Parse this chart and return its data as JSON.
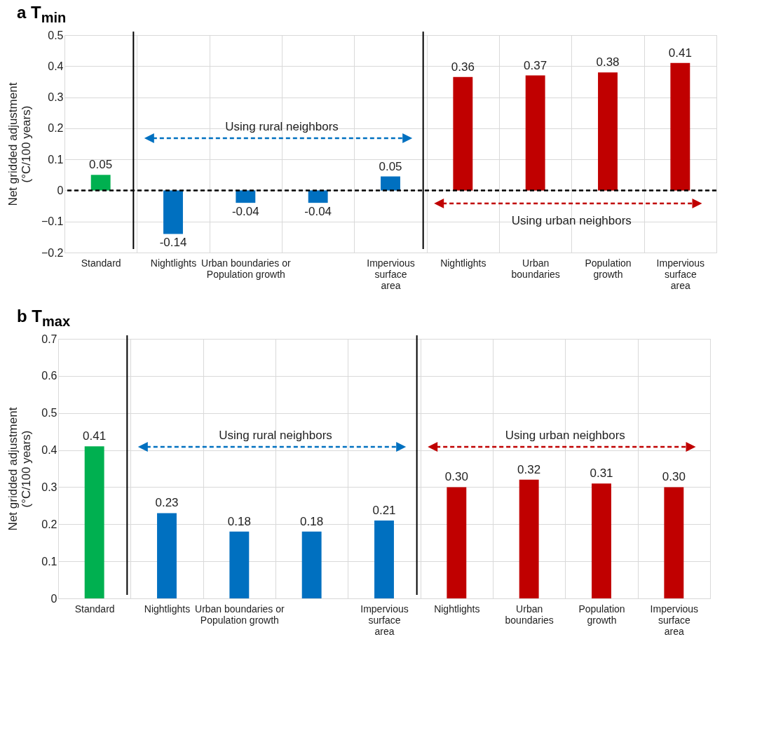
{
  "chart_data": [
    {
      "type": "bar",
      "title": "a T$_{min}$",
      "ylabel": "Net gridded adjustment (°C/100 years)",
      "categories": [
        "Standard",
        "Nightlights",
        "Urban boundaries or Population growth",
        null,
        "Impervious surface area",
        "Nightlights",
        "Urban boundaries",
        "Population growth",
        "Impervious surface area"
      ],
      "values": [
        0.05,
        -0.14,
        -0.04,
        -0.04,
        0.045,
        0.365,
        0.37,
        0.38,
        0.41
      ],
      "value_labels": [
        "0.05",
        "-0.14",
        "-0.04",
        "-0.04",
        "0.05",
        "0.36",
        "0.37",
        "0.38",
        "0.41"
      ],
      "colors": [
        "#00b050",
        "#0070c0",
        "#0070c0",
        "#0070c0",
        "#0070c0",
        "#c00000",
        "#c00000",
        "#c00000",
        "#c00000"
      ],
      "ylim": [
        -0.2,
        0.5
      ],
      "yticks": [
        -0.2,
        -0.1,
        0,
        0.1,
        0.2,
        0.3,
        0.4,
        0.5
      ],
      "grid": true,
      "ref_lines": [
        {
          "axis": "y",
          "value": 0,
          "color": "#000000",
          "line_style": "dashed"
        }
      ],
      "annotations": [
        "Using rural neighbors",
        "Using urban neighbors"
      ]
    },
    {
      "type": "bar",
      "title": "b T$_{max}$",
      "ylabel": "Net gridded adjustment (°C/100 years)",
      "categories": [
        "Standard",
        "Nightlights",
        "Urban boundaries or Population growth",
        null,
        "Impervious surface area",
        "Nightlights",
        "Urban boundaries",
        "Population growth",
        "Impervious surface area"
      ],
      "values": [
        0.41,
        0.23,
        0.18,
        0.18,
        0.21,
        0.3,
        0.32,
        0.31,
        0.3
      ],
      "value_labels": [
        "0.41",
        "0.23",
        "0.18",
        "0.18",
        "0.21",
        "0.30",
        "0.32",
        "0.31",
        "0.30"
      ],
      "colors": [
        "#00b050",
        "#0070c0",
        "#0070c0",
        "#0070c0",
        "#0070c0",
        "#c00000",
        "#c00000",
        "#c00000",
        "#c00000"
      ],
      "ylim": [
        0,
        0.7
      ],
      "yticks": [
        0,
        0.1,
        0.2,
        0.3,
        0.4,
        0.5,
        0.6,
        0.7
      ],
      "grid": true,
      "annotations": [
        "Using rural neighbors",
        "Using urban neighbors"
      ]
    }
  ]
}
